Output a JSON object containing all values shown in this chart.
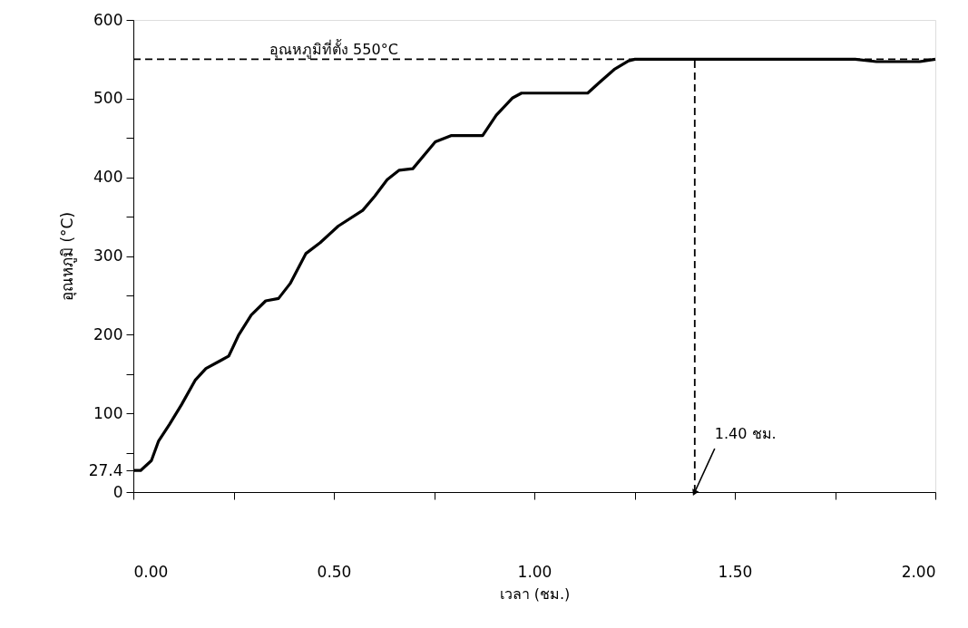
{
  "chart_data": {
    "type": "line",
    "xlabel": "เวลา (ชม.)",
    "ylabel": "อุณหภูมิ (°C)",
    "x": [
      0,
      0.018,
      0.045,
      0.063,
      0.09,
      0.12,
      0.154,
      0.181,
      0.217,
      0.238,
      0.262,
      0.294,
      0.33,
      0.362,
      0.391,
      0.43,
      0.466,
      0.511,
      0.572,
      0.602,
      0.633,
      0.663,
      0.697,
      0.753,
      0.792,
      0.871,
      0.905,
      0.946,
      0.968,
      1.133,
      1.161,
      1.199,
      1.235,
      1.251,
      1.376,
      1.4,
      1.45,
      1.5,
      1.6,
      1.7,
      1.8,
      1.853,
      1.961,
      2.0
    ],
    "series": [
      {
        "color": "#000000",
        "values": [
          27.4,
          27.4,
          40,
          65,
          86,
          111,
          142,
          157,
          167,
          173,
          199,
          225,
          243,
          246,
          265,
          303,
          317,
          338,
          358,
          376,
          397,
          409,
          411,
          445,
          453,
          453,
          479,
          501,
          507,
          507,
          520,
          537,
          548,
          550,
          550,
          550,
          550,
          550,
          550,
          550,
          550,
          547,
          547,
          550
        ]
      }
    ],
    "xlim": [
      0,
      2
    ],
    "ylim": [
      0,
      600
    ],
    "xticks": [
      {
        "value": 0,
        "label": "0.00"
      },
      {
        "value": 0.25,
        "label": null
      },
      {
        "value": 0.5,
        "label": "0.50"
      },
      {
        "value": 0.75,
        "label": null
      },
      {
        "value": 1,
        "label": "1.00"
      },
      {
        "value": 1.25,
        "label": null
      },
      {
        "value": 1.5,
        "label": "1.50"
      },
      {
        "value": 1.75,
        "label": null
      },
      {
        "value": 2,
        "label": "2.00"
      }
    ],
    "yticks": [
      0,
      27.4,
      {
        "value": 50,
        "label": null
      },
      100,
      {
        "value": 150,
        "label": null
      },
      200,
      {
        "value": 250,
        "label": null
      },
      300,
      {
        "value": 350,
        "label": null
      },
      400,
      {
        "value": 450,
        "label": null
      },
      500,
      600
    ],
    "ref_lines": [
      {
        "axis": "y",
        "value": 550,
        "label": "อุณหภูมิที่ตั้ง 550°C",
        "line_style": "dashed"
      },
      {
        "axis": "x",
        "value": 1.4,
        "line_style": "dashed"
      }
    ],
    "annotations": [
      {
        "text": "1.40 ชม.",
        "x": 1.4,
        "y": 0
      }
    ],
    "grid": false,
    "marker": "none",
    "line_style": "solid"
  }
}
